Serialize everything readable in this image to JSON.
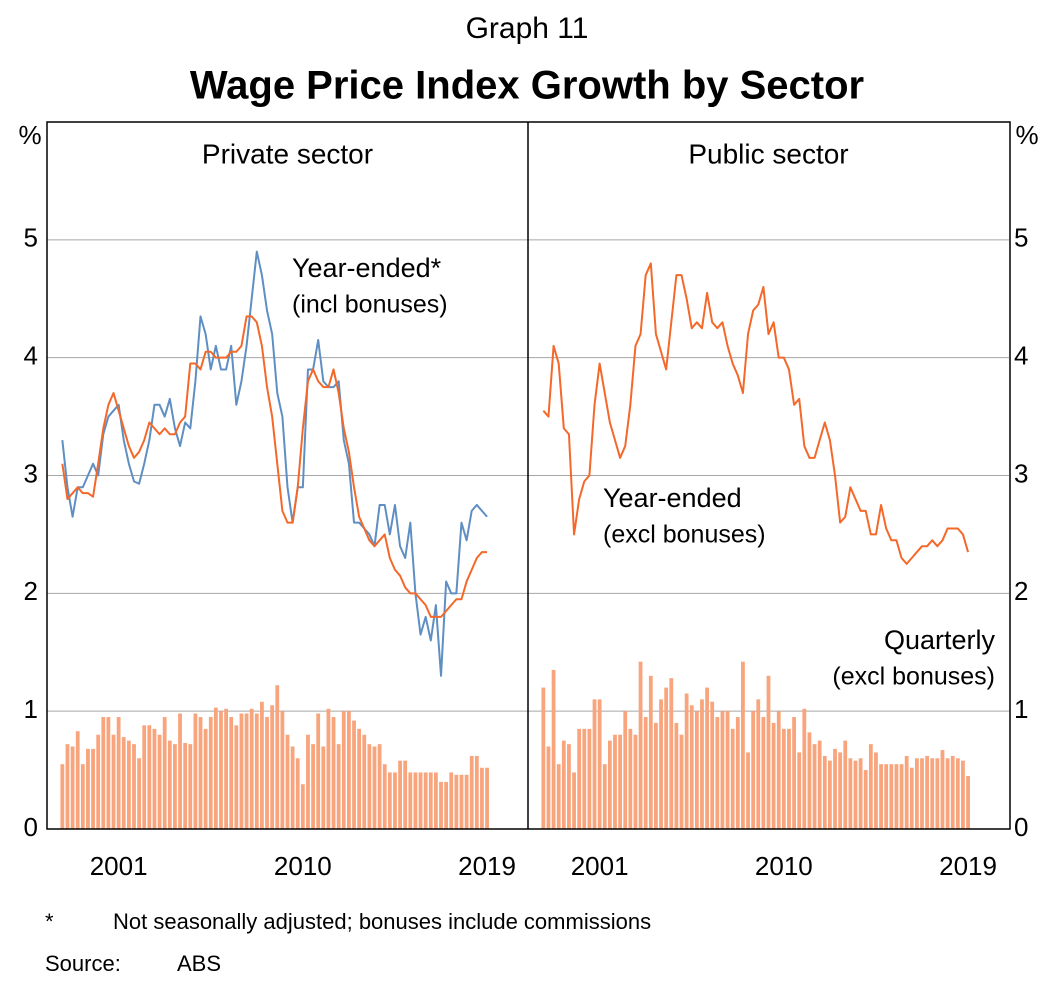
{
  "graph_label": "Graph 11",
  "title": "Wage Price Index Growth by Sector",
  "footnote": {
    "marker": "*",
    "text": "Not seasonally adjusted; bonuses include commissions"
  },
  "source": {
    "label": "Source:",
    "text": "ABS"
  },
  "chart_data": [
    {
      "type": "combo",
      "title": "Private sector",
      "ylabel": "%",
      "yaxis_side": "left",
      "grid": true,
      "xlim": [
        1997.5,
        2021
      ],
      "xticks": [
        2001,
        2010,
        2019
      ],
      "ylim": [
        0,
        6
      ],
      "yticks": [
        0,
        1,
        2,
        3,
        4,
        5
      ],
      "x": [
        1998.25,
        1998.5,
        1998.75,
        1999,
        1999.25,
        1999.5,
        1999.75,
        2000,
        2000.25,
        2000.5,
        2000.75,
        2001,
        2001.25,
        2001.5,
        2001.75,
        2002,
        2002.25,
        2002.5,
        2002.75,
        2003,
        2003.25,
        2003.5,
        2003.75,
        2004,
        2004.25,
        2004.5,
        2004.75,
        2005,
        2005.25,
        2005.5,
        2005.75,
        2006,
        2006.25,
        2006.5,
        2006.75,
        2007,
        2007.25,
        2007.5,
        2007.75,
        2008,
        2008.25,
        2008.5,
        2008.75,
        2009,
        2009.25,
        2009.5,
        2009.75,
        2010,
        2010.25,
        2010.5,
        2010.75,
        2011,
        2011.25,
        2011.5,
        2011.75,
        2012,
        2012.25,
        2012.5,
        2012.75,
        2013,
        2013.25,
        2013.5,
        2013.75,
        2014,
        2014.25,
        2014.5,
        2014.75,
        2015,
        2015.25,
        2015.5,
        2015.75,
        2016,
        2016.25,
        2016.5,
        2016.75,
        2017,
        2017.25,
        2017.5,
        2017.75,
        2018,
        2018.25,
        2018.5,
        2018.75,
        2019
      ],
      "series": [
        {
          "type": "bar",
          "color": "#f8a47c",
          "values": [
            0.55,
            0.72,
            0.7,
            0.83,
            0.55,
            0.68,
            0.68,
            0.8,
            0.95,
            0.95,
            0.8,
            0.95,
            0.78,
            0.75,
            0.72,
            0.6,
            0.88,
            0.88,
            0.85,
            0.8,
            0.95,
            0.75,
            0.72,
            0.98,
            0.73,
            0.72,
            0.98,
            0.95,
            0.85,
            0.95,
            1.03,
            1.0,
            1.02,
            0.95,
            0.88,
            0.98,
            0.98,
            1.02,
            0.98,
            1.08,
            0.95,
            1.05,
            1.22,
            1.0,
            0.8,
            0.7,
            0.6,
            0.38,
            0.8,
            0.72,
            0.98,
            0.7,
            1.02,
            0.95,
            0.72,
            1.0,
            1.0,
            0.92,
            0.85,
            0.8,
            0.72,
            0.7,
            0.72,
            0.55,
            0.48,
            0.48,
            0.58,
            0.58,
            0.48,
            0.48,
            0.48,
            0.48,
            0.48,
            0.48,
            0.4,
            0.4,
            0.48,
            0.46,
            0.46,
            0.46,
            0.62,
            0.62,
            0.52,
            0.52
          ]
        },
        {
          "type": "line",
          "name": "Year-ended*",
          "detail": "(incl bonuses)",
          "color": "#5f8fc2",
          "values": [
            3.3,
            2.9,
            2.65,
            2.9,
            2.9,
            3.0,
            3.1,
            3.0,
            3.35,
            3.5,
            3.55,
            3.6,
            3.3,
            3.1,
            2.95,
            2.93,
            3.1,
            3.3,
            3.6,
            3.6,
            3.5,
            3.65,
            3.4,
            3.25,
            3.45,
            3.4,
            3.8,
            4.35,
            4.2,
            3.9,
            4.1,
            3.9,
            3.9,
            4.1,
            3.6,
            3.8,
            4.1,
            4.5,
            4.9,
            4.7,
            4.4,
            4.2,
            3.7,
            3.5,
            2.9,
            2.6,
            2.9,
            2.9,
            3.9,
            3.9,
            4.15,
            3.8,
            3.75,
            3.75,
            3.8,
            3.3,
            3.1,
            2.6,
            2.6,
            2.55,
            2.5,
            2.4,
            2.75,
            2.75,
            2.5,
            2.75,
            2.4,
            2.3,
            2.6,
            2.0,
            1.65,
            1.8,
            1.6,
            1.9,
            1.3,
            2.1,
            2.0,
            2.0,
            2.6,
            2.45,
            2.7,
            2.75,
            2.7,
            2.65
          ]
        },
        {
          "type": "line",
          "color": "#f4682a",
          "values": [
            3.1,
            2.8,
            2.85,
            2.9,
            2.85,
            2.85,
            2.82,
            3.1,
            3.4,
            3.6,
            3.7,
            3.55,
            3.4,
            3.25,
            3.15,
            3.2,
            3.3,
            3.45,
            3.4,
            3.35,
            3.4,
            3.35,
            3.35,
            3.45,
            3.5,
            3.95,
            3.95,
            3.9,
            4.05,
            4.05,
            4.0,
            4.0,
            4.0,
            4.05,
            4.05,
            4.1,
            4.35,
            4.35,
            4.3,
            4.1,
            3.75,
            3.5,
            3.1,
            2.7,
            2.6,
            2.6,
            2.9,
            3.4,
            3.8,
            3.9,
            3.8,
            3.75,
            3.75,
            3.9,
            3.7,
            3.4,
            3.2,
            2.9,
            2.65,
            2.55,
            2.45,
            2.4,
            2.45,
            2.5,
            2.3,
            2.2,
            2.15,
            2.05,
            2.0,
            2.0,
            1.95,
            1.9,
            1.8,
            1.8,
            1.8,
            1.85,
            1.9,
            1.95,
            1.95,
            2.1,
            2.2,
            2.3,
            2.35,
            2.35
          ]
        }
      ]
    },
    {
      "type": "combo",
      "title": "Public sector",
      "ylabel": "%",
      "yaxis_side": "right",
      "grid": true,
      "xlim": [
        1997.5,
        2021
      ],
      "xticks": [
        2001,
        2010,
        2019
      ],
      "ylim": [
        0,
        6
      ],
      "yticks": [
        0,
        1,
        2,
        3,
        4,
        5
      ],
      "x": [
        1998.25,
        1998.5,
        1998.75,
        1999,
        1999.25,
        1999.5,
        1999.75,
        2000,
        2000.25,
        2000.5,
        2000.75,
        2001,
        2001.25,
        2001.5,
        2001.75,
        2002,
        2002.25,
        2002.5,
        2002.75,
        2003,
        2003.25,
        2003.5,
        2003.75,
        2004,
        2004.25,
        2004.5,
        2004.75,
        2005,
        2005.25,
        2005.5,
        2005.75,
        2006,
        2006.25,
        2006.5,
        2006.75,
        2007,
        2007.25,
        2007.5,
        2007.75,
        2008,
        2008.25,
        2008.5,
        2008.75,
        2009,
        2009.25,
        2009.5,
        2009.75,
        2010,
        2010.25,
        2010.5,
        2010.75,
        2011,
        2011.25,
        2011.5,
        2011.75,
        2012,
        2012.25,
        2012.5,
        2012.75,
        2013,
        2013.25,
        2013.5,
        2013.75,
        2014,
        2014.25,
        2014.5,
        2014.75,
        2015,
        2015.25,
        2015.5,
        2015.75,
        2016,
        2016.25,
        2016.5,
        2016.75,
        2017,
        2017.25,
        2017.5,
        2017.75,
        2018,
        2018.25,
        2018.5,
        2018.75,
        2019
      ],
      "series": [
        {
          "type": "bar",
          "name": "Quarterly",
          "detail": "(excl bonuses)",
          "color": "#f8a47c",
          "values": [
            1.2,
            0.7,
            1.35,
            0.55,
            0.75,
            0.72,
            0.48,
            0.85,
            0.85,
            0.85,
            1.1,
            1.1,
            0.55,
            0.75,
            0.8,
            0.8,
            1.0,
            0.85,
            0.8,
            1.42,
            0.95,
            1.3,
            0.9,
            1.1,
            1.2,
            1.28,
            0.9,
            0.8,
            1.15,
            1.05,
            1.0,
            1.1,
            1.2,
            1.08,
            0.95,
            1.0,
            1.0,
            0.85,
            0.95,
            1.42,
            0.65,
            1.0,
            1.1,
            0.95,
            1.3,
            0.9,
            1.0,
            0.85,
            0.85,
            0.95,
            0.65,
            1.02,
            0.82,
            0.72,
            0.75,
            0.62,
            0.58,
            0.68,
            0.65,
            0.75,
            0.6,
            0.58,
            0.6,
            0.5,
            0.72,
            0.65,
            0.55,
            0.55,
            0.55,
            0.55,
            0.55,
            0.62,
            0.52,
            0.6,
            0.6,
            0.62,
            0.6,
            0.6,
            0.67,
            0.6,
            0.62,
            0.6,
            0.58,
            0.45
          ]
        },
        {
          "type": "line",
          "name": "Year-ended",
          "detail": "(excl bonuses)",
          "color": "#f4682a",
          "values": [
            3.55,
            3.5,
            4.1,
            3.95,
            3.4,
            3.35,
            2.5,
            2.8,
            2.95,
            3.0,
            3.6,
            3.95,
            3.7,
            3.45,
            3.3,
            3.15,
            3.25,
            3.6,
            4.1,
            4.2,
            4.7,
            4.8,
            4.2,
            4.05,
            3.9,
            4.3,
            4.7,
            4.7,
            4.5,
            4.25,
            4.3,
            4.25,
            4.55,
            4.3,
            4.25,
            4.3,
            4.1,
            3.95,
            3.85,
            3.7,
            4.2,
            4.4,
            4.45,
            4.6,
            4.2,
            4.3,
            4.0,
            4.0,
            3.9,
            3.6,
            3.65,
            3.25,
            3.15,
            3.15,
            3.3,
            3.45,
            3.3,
            3.0,
            2.6,
            2.65,
            2.9,
            2.8,
            2.7,
            2.7,
            2.5,
            2.5,
            2.75,
            2.55,
            2.45,
            2.45,
            2.3,
            2.25,
            2.3,
            2.35,
            2.4,
            2.4,
            2.45,
            2.4,
            2.45,
            2.55,
            2.55,
            2.55,
            2.5,
            2.35
          ]
        }
      ]
    }
  ]
}
